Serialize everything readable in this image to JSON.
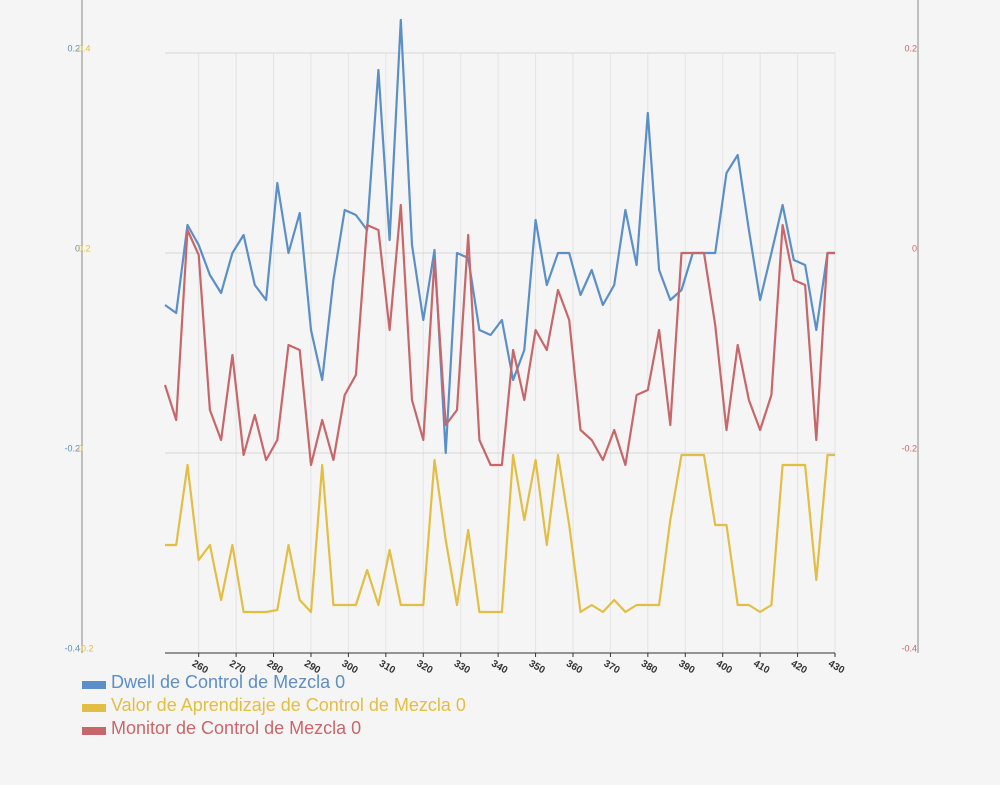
{
  "chart_data": {
    "type": "line",
    "x": [
      251,
      254,
      257,
      260,
      263,
      266,
      269,
      272,
      275,
      278,
      281,
      284,
      287,
      290,
      293,
      296,
      299,
      302,
      305,
      308,
      311,
      314,
      317,
      320,
      323,
      326,
      329,
      332,
      335,
      338,
      341,
      344,
      347,
      350,
      353,
      356,
      359,
      362,
      365,
      368,
      371,
      374,
      377,
      380,
      383,
      386,
      389,
      392,
      395,
      398,
      401,
      404,
      407,
      410,
      413,
      416,
      419,
      422,
      425,
      428,
      430
    ],
    "xlim": [
      251,
      430
    ],
    "xticks": [
      260,
      270,
      280,
      290,
      300,
      310,
      320,
      330,
      340,
      350,
      360,
      370,
      380,
      390,
      400,
      410,
      420,
      430
    ],
    "ylim": [
      -0.4,
      0.2
    ],
    "yticks": [
      -0.4,
      -0.2,
      0,
      0.2
    ],
    "y2lim": [
      -0.2,
      0.4
    ],
    "y2ticks": [
      -0.2,
      0,
      0.2,
      0.4
    ],
    "y3lim": [
      -0.4,
      0.2
    ],
    "y3ticks": [
      -0.4,
      -0.2,
      0,
      0.2
    ],
    "grid": true,
    "legend": "bottom-left",
    "series": [
      {
        "name": "Dwell de Control de Mezcla 0",
        "color": "#5b8fc7",
        "axis": "y",
        "values": [
          -0.052,
          -0.06,
          0.028,
          0.008,
          -0.022,
          -0.04,
          0.0,
          0.018,
          -0.032,
          -0.047,
          0.07,
          0.0,
          0.04,
          -0.077,
          -0.127,
          -0.027,
          0.043,
          0.038,
          0.023,
          0.183,
          0.013,
          0.233,
          0.008,
          -0.067,
          0.003,
          -0.2,
          0,
          -0.005,
          -0.077,
          -0.082,
          -0.067,
          -0.127,
          -0.097,
          0.033,
          -0.032,
          0,
          0,
          -0.042,
          -0.017,
          -0.052,
          -0.032,
          0.043,
          -0.012,
          0.14,
          -0.017,
          -0.047,
          -0.037,
          0,
          0,
          0,
          0.08,
          0.098,
          0.023,
          -0.047,
          0,
          0.048,
          -0.007,
          -0.012,
          -0.077,
          0,
          0
        ]
      },
      {
        "name": "Valor de Aprendizaje de Control de Mezcla 0",
        "color": "#e3be45",
        "axis": "y2",
        "values": [
          -0.092,
          -0.092,
          -0.012,
          -0.107,
          -0.092,
          -0.147,
          -0.092,
          -0.159,
          -0.159,
          -0.159,
          -0.157,
          -0.092,
          -0.147,
          -0.159,
          -0.012,
          -0.152,
          -0.152,
          -0.152,
          -0.117,
          -0.152,
          -0.097,
          -0.152,
          -0.152,
          -0.152,
          -0.007,
          -0.087,
          -0.152,
          -0.077,
          -0.159,
          -0.159,
          -0.159,
          -0.002,
          -0.067,
          -0.007,
          -0.092,
          -0.002,
          -0.072,
          -0.159,
          -0.152,
          -0.159,
          -0.147,
          -0.159,
          -0.152,
          -0.152,
          -0.152,
          -0.067,
          -0.002,
          -0.002,
          -0.002,
          -0.072,
          -0.072,
          -0.152,
          -0.152,
          -0.159,
          -0.152,
          -0.012,
          -0.012,
          -0.012,
          -0.127,
          -0.002,
          -0.002
        ]
      },
      {
        "name": "Monitor de Control de Mezcla 0",
        "color": "#c8676a",
        "axis": "y3",
        "values": [
          -0.132,
          -0.167,
          0.023,
          -0.002,
          -0.157,
          -0.187,
          -0.102,
          -0.202,
          -0.162,
          -0.207,
          -0.187,
          -0.092,
          -0.097,
          -0.212,
          -0.167,
          -0.207,
          -0.142,
          -0.122,
          0.028,
          0.023,
          -0.077,
          0.048,
          -0.147,
          -0.187,
          -0.007,
          -0.172,
          -0.157,
          0.018,
          -0.187,
          -0.212,
          -0.212,
          -0.097,
          -0.147,
          -0.077,
          -0.097,
          -0.037,
          -0.067,
          -0.177,
          -0.187,
          -0.207,
          -0.177,
          -0.212,
          -0.142,
          -0.137,
          -0.077,
          -0.172,
          0,
          0,
          0,
          -0.072,
          -0.177,
          -0.092,
          -0.147,
          -0.177,
          -0.142,
          0.028,
          -0.027,
          -0.032,
          -0.187,
          0,
          0
        ]
      }
    ]
  }
}
